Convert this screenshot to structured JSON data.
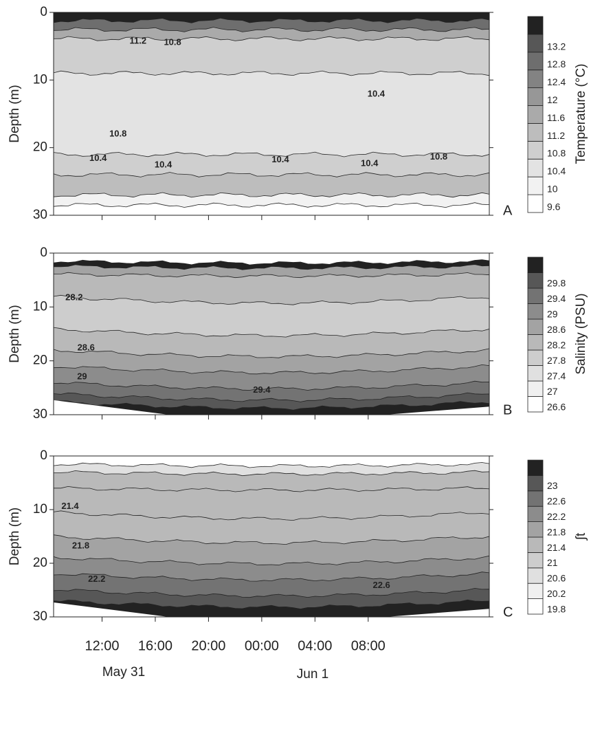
{
  "x_axis": {
    "xlim": [
      8.36,
      41.1
    ],
    "xticks": [
      {
        "value": 12,
        "label": "12:00"
      },
      {
        "value": 16,
        "label": "16:00"
      },
      {
        "value": 20,
        "label": "20:00"
      },
      {
        "value": 24,
        "label": "00:00"
      },
      {
        "value": 28,
        "label": "04:00"
      },
      {
        "value": 32,
        "label": "08:00"
      }
    ],
    "date_labels": [
      "May 31",
      "Jun 1"
    ]
  },
  "chart_data": [
    {
      "type": "contour",
      "panel": "A",
      "ylabel": "Depth (m)",
      "colorbar_label": "Temperature (°C)",
      "ylim": [
        0,
        30
      ],
      "yticks": [
        0,
        10,
        20,
        30
      ],
      "levels": [
        9.6,
        10,
        10.4,
        10.8,
        11.2,
        11.6,
        12,
        12.4,
        12.8,
        13.2
      ],
      "colors": [
        "#ffffff",
        "#f2f2f2",
        "#e3e3e3",
        "#cfcfcf",
        "#bdbdbd",
        "#aaaaaa",
        "#979797",
        "#838383",
        "#6e6e6e",
        "#575757",
        "#222222"
      ],
      "contour_labels": [
        {
          "value": 11.2,
          "x": 14.7,
          "depth": 4.3
        },
        {
          "value": 10.8,
          "x": 17.3,
          "depth": 4.5
        },
        {
          "value": 10.4,
          "x": 32.6,
          "depth": 12.1
        },
        {
          "value": 10.8,
          "x": 13.2,
          "depth": 18.0
        },
        {
          "value": 10.4,
          "x": 11.7,
          "depth": 21.6
        },
        {
          "value": 10.4,
          "x": 16.6,
          "depth": 22.6
        },
        {
          "value": 10.4,
          "x": 25.4,
          "depth": 21.8
        },
        {
          "value": 10.4,
          "x": 32.1,
          "depth": 22.4
        },
        {
          "value": 10.8,
          "x": 37.3,
          "depth": 21.4
        }
      ]
    },
    {
      "type": "contour",
      "panel": "B",
      "ylabel": "Depth (m)",
      "colorbar_label": "Salinity (PSU)",
      "ylim": [
        0,
        30
      ],
      "yticks": [
        0,
        10,
        20,
        30
      ],
      "levels": [
        26.6,
        27,
        27.4,
        27.8,
        28.2,
        28.6,
        29,
        29.4,
        29.8
      ],
      "colors": [
        "#ffffff",
        "#f0f0f0",
        "#e0e0e0",
        "#cdcdcd",
        "#b9b9b9",
        "#a3a3a3",
        "#8c8c8c",
        "#737373",
        "#575757",
        "#222222"
      ],
      "contour_labels": [
        {
          "value": 28.2,
          "x": 9.9,
          "depth": 8.3
        },
        {
          "value": 28.6,
          "x": 10.8,
          "depth": 17.6
        },
        {
          "value": 29,
          "x": 10.5,
          "depth": 23.0
        },
        {
          "value": 29.4,
          "x": 24.0,
          "depth": 25.5
        }
      ]
    },
    {
      "type": "contour",
      "panel": "C",
      "ylabel": "Depth (m)",
      "colorbar_label": "∫t",
      "ylim": [
        0,
        30
      ],
      "yticks": [
        0,
        10,
        20,
        30
      ],
      "levels": [
        19.8,
        20.2,
        20.6,
        21,
        21.4,
        21.8,
        22.2,
        22.6,
        23
      ],
      "colors": [
        "#ffffff",
        "#f0f0f0",
        "#e0e0e0",
        "#cdcdcd",
        "#b9b9b9",
        "#a3a3a3",
        "#8c8c8c",
        "#737373",
        "#575757",
        "#222222"
      ],
      "contour_labels": [
        {
          "value": 21.4,
          "x": 9.6,
          "depth": 9.4
        },
        {
          "value": 21.8,
          "x": 10.4,
          "depth": 16.8
        },
        {
          "value": 22.2,
          "x": 11.6,
          "depth": 23.0
        },
        {
          "value": 22.6,
          "x": 33.0,
          "depth": 24.2
        }
      ]
    }
  ]
}
